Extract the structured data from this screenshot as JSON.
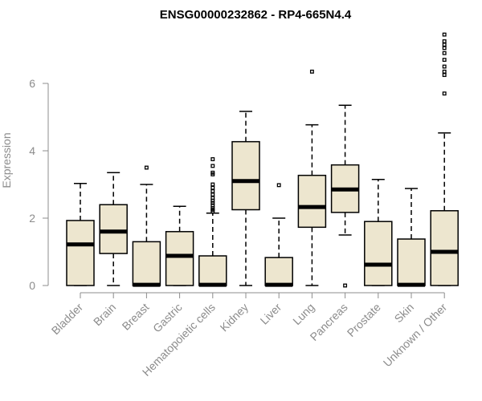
{
  "chart_data": {
    "type": "boxplot",
    "title": "ENSG00000232862 - RP4-665N4.4",
    "ylabel": "Expression",
    "xlabel": "",
    "ylim": [
      0,
      7.5
    ],
    "yticks": [
      0,
      2,
      4,
      6
    ],
    "grid": false,
    "box_fill": "#ede6cf",
    "categories": [
      "Bladder",
      "Brain",
      "Breast",
      "Gastric",
      "Hematopoietic cells",
      "Kidney",
      "Liver",
      "Lung",
      "Pancreas",
      "Prostate",
      "Skin",
      "Unknown / Other"
    ],
    "boxes": [
      {
        "min": 0.0,
        "q1": 0.0,
        "median": 1.22,
        "q3": 1.93,
        "max": 3.03,
        "outliers": []
      },
      {
        "min": 0.0,
        "q1": 0.95,
        "median": 1.6,
        "q3": 2.4,
        "max": 3.35,
        "outliers": []
      },
      {
        "min": 0.0,
        "q1": 0.0,
        "median": 0.02,
        "q3": 1.3,
        "max": 3.0,
        "outliers": [
          3.5
        ]
      },
      {
        "min": 0.0,
        "q1": 0.0,
        "median": 0.88,
        "q3": 1.6,
        "max": 2.35,
        "outliers": []
      },
      {
        "min": 0.0,
        "q1": 0.0,
        "median": 0.02,
        "q3": 0.88,
        "max": 2.15,
        "outliers": [
          2.2,
          2.25,
          2.3,
          2.38,
          2.45,
          2.52,
          2.6,
          2.7,
          2.8,
          2.9,
          3.0,
          3.3,
          3.35,
          3.55,
          3.75
        ]
      },
      {
        "min": 0.0,
        "q1": 2.25,
        "median": 3.1,
        "q3": 4.27,
        "max": 5.17,
        "outliers": []
      },
      {
        "min": 0.0,
        "q1": 0.0,
        "median": 0.02,
        "q3": 0.83,
        "max": 2.0,
        "outliers": [
          2.98
        ]
      },
      {
        "min": 0.0,
        "q1": 1.73,
        "median": 2.33,
        "q3": 3.27,
        "max": 4.77,
        "outliers": [
          6.35
        ]
      },
      {
        "min": 1.5,
        "q1": 2.17,
        "median": 2.85,
        "q3": 3.58,
        "max": 5.35,
        "outliers": [
          0.0
        ]
      },
      {
        "min": 0.0,
        "q1": 0.0,
        "median": 0.62,
        "q3": 1.9,
        "max": 3.15,
        "outliers": []
      },
      {
        "min": 0.0,
        "q1": 0.0,
        "median": 0.02,
        "q3": 1.38,
        "max": 2.88,
        "outliers": []
      },
      {
        "min": 0.0,
        "q1": 0.0,
        "median": 1.0,
        "q3": 2.22,
        "max": 4.53,
        "outliers": [
          5.7,
          6.25,
          6.35,
          6.5,
          6.7,
          6.9,
          7.05,
          7.15,
          7.25,
          7.45
        ]
      }
    ]
  }
}
